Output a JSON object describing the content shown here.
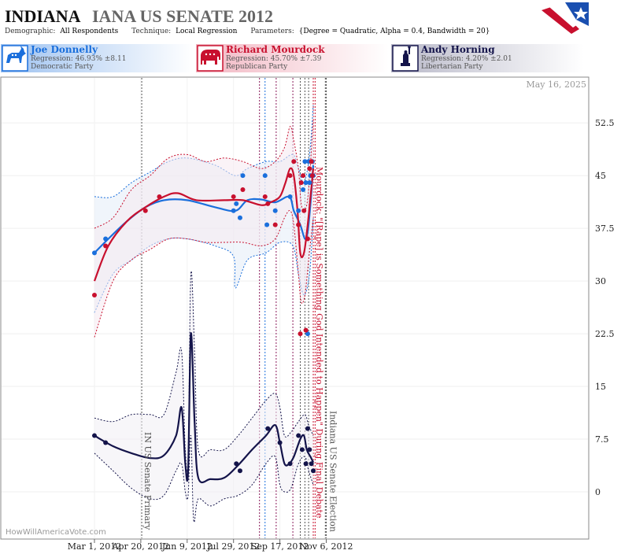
{
  "header": {
    "title_state": "INDIANA",
    "title_rest": "IANA US SENATE 2012",
    "demographic_label": "Demographic:",
    "demographic_value": "All Respondents",
    "technique_label": "Technique:",
    "technique_value": "Local Regression",
    "parameters_label": "Parameters:",
    "parameters_value": "{Degree = Quadratic, Alpha = 0.4, Bandwidth = 20}"
  },
  "candidates": [
    {
      "name": "Joe Donnelly",
      "regression": "Regression: 46.93% ±8.11",
      "party": "Democratic Party",
      "color": "#1a6fdc",
      "icon": "donkey-icon"
    },
    {
      "name": "Richard Mourdock",
      "regression": "Regression: 45.70% ±7.39",
      "party": "Republican Party",
      "color": "#c8102e",
      "icon": "elephant-icon"
    },
    {
      "name": "Andy Horning",
      "regression": "Regression: 4.20% ±2.01",
      "party": "Libertarian Party",
      "color": "#14144a",
      "icon": "statue-of-liberty-icon"
    }
  ],
  "date_stamp": "May 16, 2025",
  "watermark": "HowWillAmericaVote.com",
  "annotations": {
    "primary": "IN US Senate Primary",
    "election": "Indiana US Senate Election",
    "mourdock_quote": "Mourdock: \"[Rape] is Something God Intended to Happen\" During Final Debate"
  },
  "chart_data": {
    "type": "line",
    "x_ticks": [
      "Mar 1, 2012",
      "Apr 20, 2012",
      "Jun 9, 2012",
      "Jul 29, 2012",
      "Sep 17, 2012",
      "Nov 6, 2012"
    ],
    "x_tick_days": [
      0,
      50,
      100,
      150,
      200,
      250
    ],
    "y_ticks": [
      0,
      7.5,
      15,
      22.5,
      30,
      37.5,
      45,
      52.5
    ],
    "ylim": [
      -6.5,
      58
    ],
    "xlim": [
      -11,
      258
    ],
    "event_lines": [
      {
        "day": 51,
        "color": "#555555",
        "label_key": "primary"
      },
      {
        "day": 178,
        "color": "#8a1a5a"
      },
      {
        "day": 184,
        "color": "#1a6fdc"
      },
      {
        "day": 196,
        "color": "#8a1a5a"
      },
      {
        "day": 214,
        "color": "#8a1a5a"
      },
      {
        "day": 222,
        "color": "#555555"
      },
      {
        "day": 227,
        "color": "#555555"
      },
      {
        "day": 231,
        "color": "#555555"
      },
      {
        "day": 236,
        "color": "#c8102e",
        "label_key": "mourdock_quote"
      },
      {
        "day": 238,
        "color": "#c8102e"
      },
      {
        "day": 249,
        "color": "#555555"
      },
      {
        "day": 250,
        "color": "#555555",
        "label_key": "election"
      }
    ],
    "series": [
      {
        "name": "Joe Donnelly",
        "color": "#1a6fdc",
        "fill": "#e4ecf7",
        "line": [
          [
            0,
            34
          ],
          [
            15,
            36
          ],
          [
            35,
            38.5
          ],
          [
            55,
            40.5
          ],
          [
            75,
            41.5
          ],
          [
            100,
            41.5
          ],
          [
            130,
            40.5
          ],
          [
            152,
            40
          ],
          [
            165,
            41.5
          ],
          [
            180,
            41.6
          ],
          [
            195,
            41.2
          ],
          [
            210,
            42
          ],
          [
            215,
            40
          ],
          [
            222,
            38
          ],
          [
            227,
            36
          ],
          [
            230,
            37
          ],
          [
            233,
            41
          ],
          [
            236,
            46.5
          ]
        ],
        "upper": [
          [
            0,
            42
          ],
          [
            20,
            42
          ],
          [
            40,
            44
          ],
          [
            60,
            45.5
          ],
          [
            80,
            47
          ],
          [
            100,
            47.5
          ],
          [
            130,
            46.5
          ],
          [
            152,
            45
          ],
          [
            165,
            46
          ],
          [
            185,
            47
          ],
          [
            200,
            47
          ],
          [
            214,
            48
          ],
          [
            220,
            46
          ],
          [
            226,
            44
          ],
          [
            232,
            48
          ],
          [
            236,
            55
          ]
        ],
        "lower": [
          [
            0,
            25.5
          ],
          [
            20,
            31
          ],
          [
            40,
            33
          ],
          [
            60,
            35
          ],
          [
            80,
            36
          ],
          [
            100,
            36
          ],
          [
            130,
            35
          ],
          [
            150,
            33.5
          ],
          [
            152,
            29
          ],
          [
            165,
            33
          ],
          [
            185,
            34
          ],
          [
            200,
            35.5
          ],
          [
            214,
            35
          ],
          [
            220,
            31
          ],
          [
            226,
            28
          ],
          [
            232,
            31
          ],
          [
            236,
            39
          ]
        ],
        "points": [
          [
            0,
            34
          ],
          [
            12,
            36
          ],
          [
            150,
            40
          ],
          [
            153,
            41
          ],
          [
            157,
            39
          ],
          [
            160,
            45
          ],
          [
            184,
            45
          ],
          [
            186,
            38
          ],
          [
            195,
            40
          ],
          [
            211,
            42
          ],
          [
            220,
            40
          ],
          [
            225,
            43
          ],
          [
            227,
            47
          ],
          [
            228,
            44
          ],
          [
            230,
            22.5
          ],
          [
            231,
            47
          ],
          [
            232,
            44
          ],
          [
            233,
            45
          ],
          [
            235,
            47
          ],
          [
            236,
            45
          ]
        ]
      },
      {
        "name": "Richard Mourdock",
        "color": "#c8102e",
        "fill": "#f5eaf0",
        "line": [
          [
            0,
            30
          ],
          [
            15,
            35
          ],
          [
            35,
            38.5
          ],
          [
            55,
            40.5
          ],
          [
            75,
            42
          ],
          [
            90,
            42.5
          ],
          [
            110,
            41.5
          ],
          [
            140,
            41.5
          ],
          [
            160,
            41.5
          ],
          [
            180,
            40.8
          ],
          [
            190,
            41.2
          ],
          [
            200,
            42
          ],
          [
            206,
            44
          ],
          [
            211,
            46
          ],
          [
            215,
            45
          ],
          [
            219,
            40
          ],
          [
            222,
            34
          ],
          [
            226,
            34
          ],
          [
            230,
            38
          ],
          [
            233,
            42
          ],
          [
            236,
            46
          ]
        ],
        "upper": [
          [
            0,
            37.5
          ],
          [
            20,
            39
          ],
          [
            40,
            43
          ],
          [
            60,
            45
          ],
          [
            80,
            47.5
          ],
          [
            100,
            48
          ],
          [
            120,
            47
          ],
          [
            140,
            47.5
          ],
          [
            160,
            47
          ],
          [
            180,
            46
          ],
          [
            195,
            47
          ],
          [
            205,
            49
          ],
          [
            211,
            52
          ],
          [
            215,
            50
          ],
          [
            220,
            46
          ],
          [
            223,
            41
          ],
          [
            227,
            40
          ],
          [
            231,
            43
          ],
          [
            236,
            53
          ]
        ],
        "lower": [
          [
            0,
            22
          ],
          [
            20,
            30
          ],
          [
            40,
            33
          ],
          [
            60,
            34.5
          ],
          [
            80,
            36
          ],
          [
            100,
            36
          ],
          [
            120,
            35.5
          ],
          [
            140,
            35.5
          ],
          [
            160,
            35.5
          ],
          [
            180,
            35
          ],
          [
            195,
            36
          ],
          [
            205,
            39
          ],
          [
            211,
            40
          ],
          [
            215,
            38
          ],
          [
            220,
            31
          ],
          [
            223,
            27
          ],
          [
            227,
            28
          ],
          [
            231,
            33
          ],
          [
            236,
            39
          ]
        ],
        "points": [
          [
            0,
            28
          ],
          [
            12,
            35
          ],
          [
            55,
            40
          ],
          [
            70,
            42
          ],
          [
            150,
            42
          ],
          [
            160,
            43
          ],
          [
            184,
            42
          ],
          [
            187,
            41
          ],
          [
            195,
            38
          ],
          [
            211,
            45
          ],
          [
            215,
            47
          ],
          [
            220,
            38
          ],
          [
            222,
            22.5
          ],
          [
            223,
            44
          ],
          [
            225,
            45
          ],
          [
            226,
            40
          ],
          [
            228,
            23
          ],
          [
            230,
            36
          ],
          [
            232,
            46
          ],
          [
            234,
            47
          ],
          [
            235,
            45
          ]
        ]
      },
      {
        "name": "Andy Horning",
        "color": "#14144a",
        "fill": "#f0eff4",
        "line": [
          [
            0,
            8
          ],
          [
            20,
            6.5
          ],
          [
            40,
            5.5
          ],
          [
            60,
            4.8
          ],
          [
            75,
            5.2
          ],
          [
            88,
            8
          ],
          [
            94,
            12
          ],
          [
            98,
            4
          ],
          [
            101,
            3
          ],
          [
            104,
            22.5
          ],
          [
            108,
            10
          ],
          [
            112,
            2
          ],
          [
            125,
            1.8
          ],
          [
            140,
            2
          ],
          [
            155,
            3.8
          ],
          [
            170,
            6
          ],
          [
            185,
            8
          ],
          [
            195,
            9.5
          ],
          [
            200,
            7
          ],
          [
            205,
            4
          ],
          [
            210,
            4
          ],
          [
            215,
            5
          ],
          [
            222,
            7.5
          ],
          [
            226,
            8
          ],
          [
            229,
            6
          ],
          [
            233,
            5
          ],
          [
            236,
            4.2
          ]
        ],
        "upper": [
          [
            0,
            10.5
          ],
          [
            20,
            10
          ],
          [
            40,
            11
          ],
          [
            60,
            11
          ],
          [
            75,
            11
          ],
          [
            88,
            17
          ],
          [
            94,
            20
          ],
          [
            98,
            6
          ],
          [
            101,
            5
          ],
          [
            104,
            31
          ],
          [
            108,
            20
          ],
          [
            112,
            6
          ],
          [
            125,
            6
          ],
          [
            140,
            6
          ],
          [
            155,
            8
          ],
          [
            170,
            10.5
          ],
          [
            185,
            13
          ],
          [
            195,
            14
          ],
          [
            200,
            12
          ],
          [
            205,
            8
          ],
          [
            212,
            8.5
          ],
          [
            220,
            10
          ],
          [
            227,
            11
          ],
          [
            231,
            9.5
          ],
          [
            236,
            8
          ]
        ],
        "lower": [
          [
            0,
            5.5
          ],
          [
            20,
            3
          ],
          [
            40,
            0.5
          ],
          [
            60,
            -1
          ],
          [
            75,
            -0.5
          ],
          [
            88,
            3
          ],
          [
            94,
            4
          ],
          [
            98,
            0
          ],
          [
            101,
            -0.5
          ],
          [
            104,
            8
          ],
          [
            107,
            -4
          ],
          [
            112,
            -1
          ],
          [
            125,
            -2
          ],
          [
            140,
            -1
          ],
          [
            155,
            -0.5
          ],
          [
            170,
            1
          ],
          [
            185,
            4
          ],
          [
            195,
            5
          ],
          [
            200,
            1
          ],
          [
            205,
            0
          ],
          [
            212,
            0.5
          ],
          [
            220,
            4
          ],
          [
            227,
            5
          ],
          [
            231,
            3
          ],
          [
            236,
            1
          ]
        ],
        "points": [
          [
            0,
            8
          ],
          [
            12,
            7
          ],
          [
            153,
            4
          ],
          [
            157,
            3
          ],
          [
            187,
            9
          ],
          [
            200,
            7
          ],
          [
            211,
            4
          ],
          [
            220,
            8
          ],
          [
            224,
            6
          ],
          [
            228,
            4
          ],
          [
            230,
            9
          ],
          [
            232,
            6
          ],
          [
            234,
            4
          ],
          [
            236,
            3
          ]
        ]
      }
    ]
  }
}
